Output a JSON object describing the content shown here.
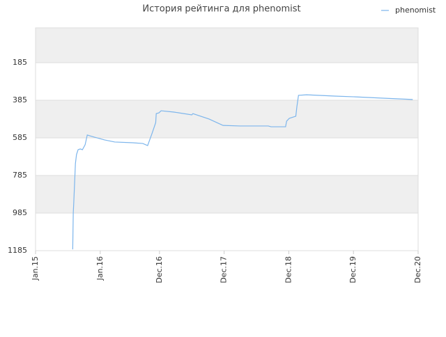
{
  "chart_data": {
    "type": "line",
    "title": "История рейтинга для phenomist",
    "x": [
      6.9,
      7.0,
      7.1,
      7.4,
      7.6,
      7.9,
      8.3,
      8.7,
      9.2,
      9.6,
      10.9,
      12.8,
      14.7,
      18.0,
      19.9,
      20.8,
      21.6,
      22.3,
      22.4,
      22.9,
      23.3,
      25.7,
      29.0,
      29.2,
      32.2,
      34.8,
      38.0,
      43.2,
      43.7,
      46.4,
      46.6,
      47.1,
      48.3,
      48.5,
      48.8,
      50.3,
      55.5,
      59.4,
      64.5,
      70.0
    ],
    "series": [
      {
        "name": "phenomist",
        "color": "#7cb5ec",
        "values": [
          1178,
          985,
          926,
          722,
          674,
          648,
          644,
          648,
          622,
          570,
          581,
          596,
          607,
          611,
          615,
          626,
          563,
          504,
          456,
          452,
          441,
          448,
          463,
          456,
          485,
          519,
          522,
          522,
          526,
          526,
          496,
          481,
          470,
          419,
          359,
          356,
          363,
          367,
          374,
          381
        ]
      }
    ],
    "xlim": [
      0,
      71
    ],
    "xticks": [
      {
        "value": 0,
        "label": "Jan.15"
      },
      {
        "value": 12,
        "label": "Jan.16"
      },
      {
        "value": 23,
        "label": "Dec.16"
      },
      {
        "value": 35,
        "label": "Dec.17"
      },
      {
        "value": 47,
        "label": "Dec.18"
      },
      {
        "value": 59,
        "label": "Dec.19"
      },
      {
        "value": 71,
        "label": "Dec.20"
      }
    ],
    "ylim": [
      1185,
      0
    ],
    "yticks": [
      185,
      385,
      585,
      785,
      985,
      1185
    ],
    "grid": true,
    "legend": "top-right"
  }
}
